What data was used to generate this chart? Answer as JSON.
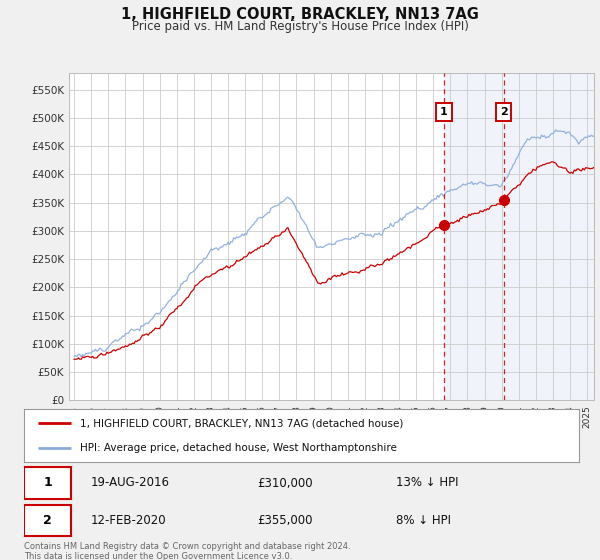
{
  "title": "1, HIGHFIELD COURT, BRACKLEY, NN13 7AG",
  "subtitle": "Price paid vs. HM Land Registry's House Price Index (HPI)",
  "legend_label_red": "1, HIGHFIELD COURT, BRACKLEY, NN13 7AG (detached house)",
  "legend_label_blue": "HPI: Average price, detached house, West Northamptonshire",
  "transaction1_date": "19-AUG-2016",
  "transaction1_price": "£310,000",
  "transaction1_note": "13% ↓ HPI",
  "transaction2_date": "12-FEB-2020",
  "transaction2_price": "£355,000",
  "transaction2_note": "8% ↓ HPI",
  "footer": "Contains HM Land Registry data © Crown copyright and database right 2024.\nThis data is licensed under the Open Government Licence v3.0.",
  "ylim": [
    0,
    580000
  ],
  "yticks": [
    0,
    50000,
    100000,
    150000,
    200000,
    250000,
    300000,
    350000,
    400000,
    450000,
    500000,
    550000
  ],
  "red_color": "#cc0000",
  "blue_color": "#88aadd",
  "vline_color": "#cc0000",
  "marker1_x": 2016.63,
  "marker1_y_red": 310000,
  "marker2_x": 2020.12,
  "marker2_y_red": 355000,
  "vline1_x": 2016.63,
  "vline2_x": 2020.12,
  "background_color": "#f0f0f0",
  "plot_bg_color": "#ffffff",
  "xmin": 1994.7,
  "xmax": 2025.4
}
